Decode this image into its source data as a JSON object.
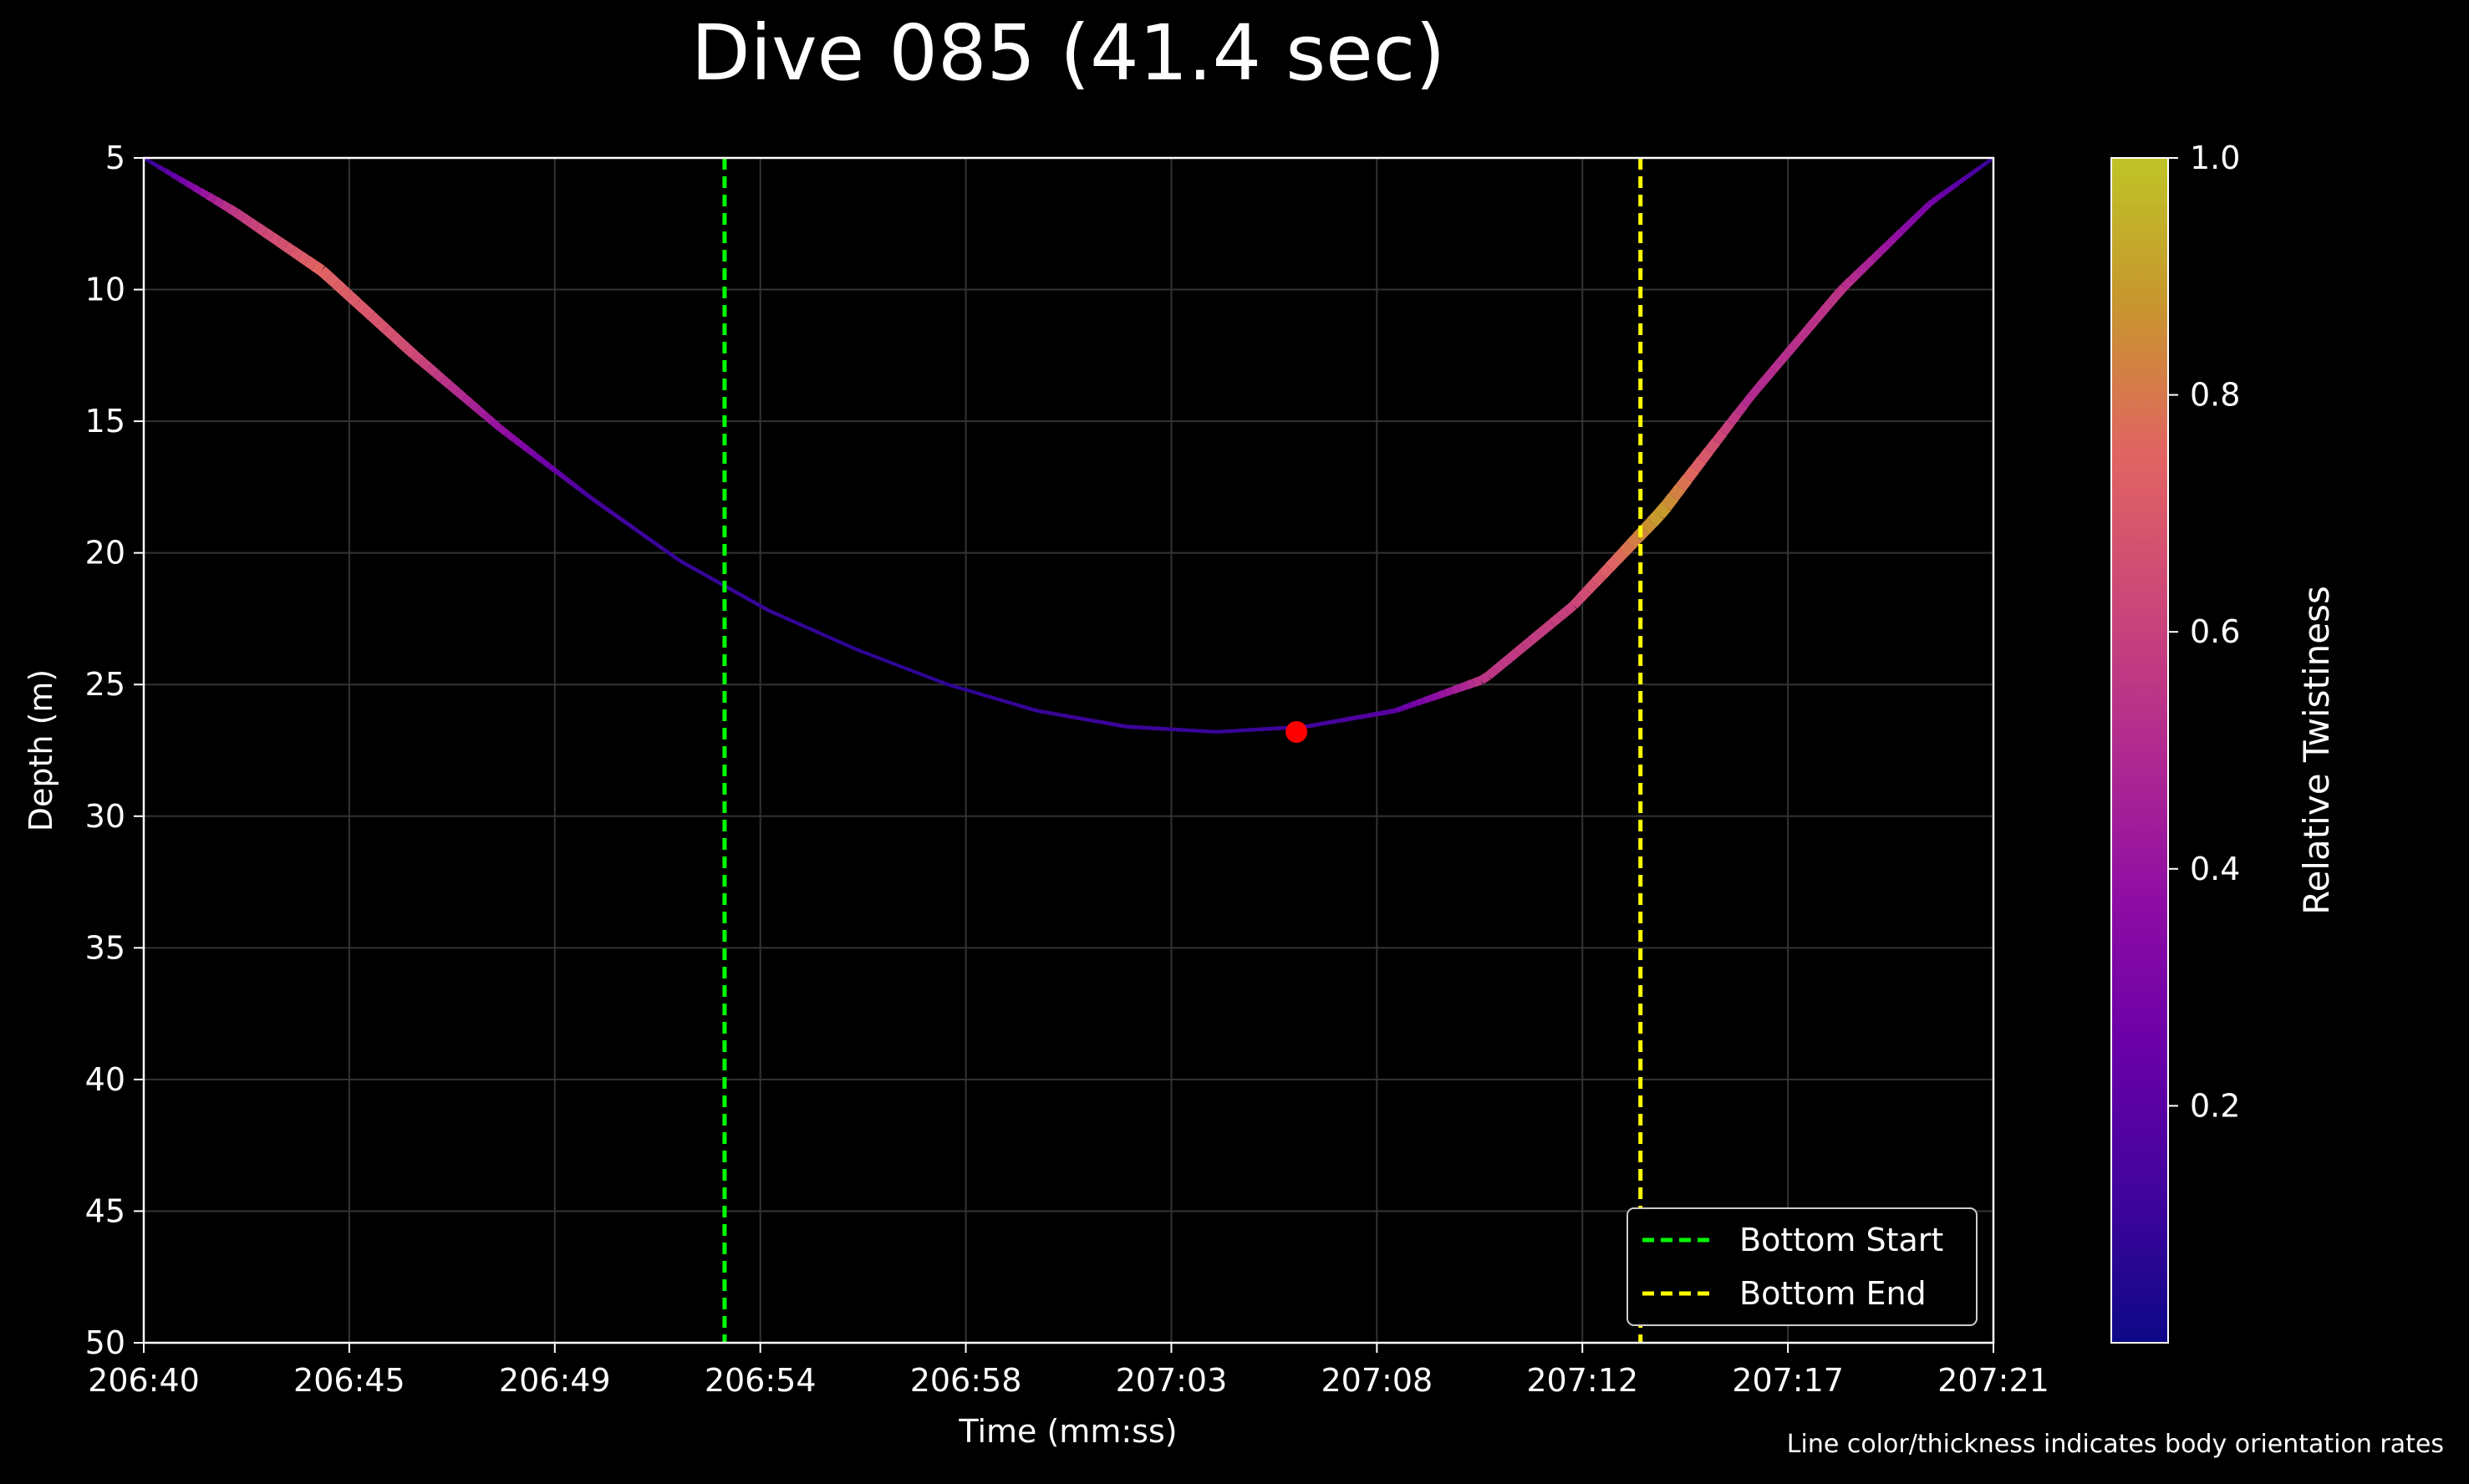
{
  "chart_data": {
    "type": "line",
    "title": "Dive 085 (41.4 sec)",
    "xlabel": "Time (mm:ss)",
    "ylabel": "Depth (m)",
    "x_ticks": [
      "206:40",
      "206:45",
      "206:49",
      "206:54",
      "206:58",
      "207:03",
      "207:08",
      "207:12",
      "207:17",
      "207:21"
    ],
    "x_range_seconds": [
      12400,
      12441.4
    ],
    "y_ticks": [
      5,
      10,
      15,
      20,
      25,
      30,
      35,
      40,
      45,
      50
    ],
    "ylim": [
      5,
      50
    ],
    "y_inverted": true,
    "grid": true,
    "series": [
      {
        "x_seconds": [
          12400,
          12402,
          12404,
          12406,
          12408,
          12410,
          12412,
          12414,
          12416,
          12418,
          12420,
          12422,
          12424,
          12426,
          12428,
          12430,
          12432,
          12434,
          12436,
          12438,
          12440,
          12441.4
        ],
        "y": [
          5.0,
          7.0,
          9.3,
          12.4,
          15.3,
          17.9,
          20.3,
          22.2,
          23.7,
          25.0,
          26.0,
          26.6,
          26.8,
          26.6,
          26.0,
          24.8,
          22.0,
          18.4,
          14.0,
          10.0,
          6.7,
          5.0
        ],
        "twistiness": [
          0.05,
          0.55,
          0.75,
          0.65,
          0.4,
          0.15,
          0.1,
          0.1,
          0.08,
          0.08,
          0.1,
          0.12,
          0.1,
          0.12,
          0.2,
          0.55,
          0.6,
          0.9,
          0.5,
          0.55,
          0.3,
          0.1
        ]
      }
    ],
    "bottom_start_seconds": 12413,
    "bottom_end_seconds": 12433.5,
    "max_depth_point": {
      "x_seconds": 12425.8,
      "y": 26.8
    },
    "legend": {
      "placement": "lower-right",
      "entries": [
        "Bottom Start",
        "Bottom End"
      ]
    },
    "colorbar": {
      "label": "Relative Twistiness",
      "ticks": [
        "0.2",
        "0.4",
        "0.6",
        "0.8",
        "1.0"
      ],
      "tick_values": [
        0.2,
        0.4,
        0.6,
        0.8,
        1.0
      ],
      "range": [
        0.0,
        1.0
      ]
    },
    "footnote": "Line color/thickness indicates body orientation rates",
    "colors": {
      "background": "#000000",
      "bottom_start": "#00ff00",
      "bottom_end": "#ffff00",
      "max_depth_marker": "#ff0000",
      "line_base": "#2a0a8a",
      "colormap": [
        "#0d0887",
        "#41049d",
        "#6a00a8",
        "#8f0da4",
        "#b12a90",
        "#cc4778",
        "#e16462",
        "#c8952e",
        "#bfc427"
      ]
    }
  }
}
